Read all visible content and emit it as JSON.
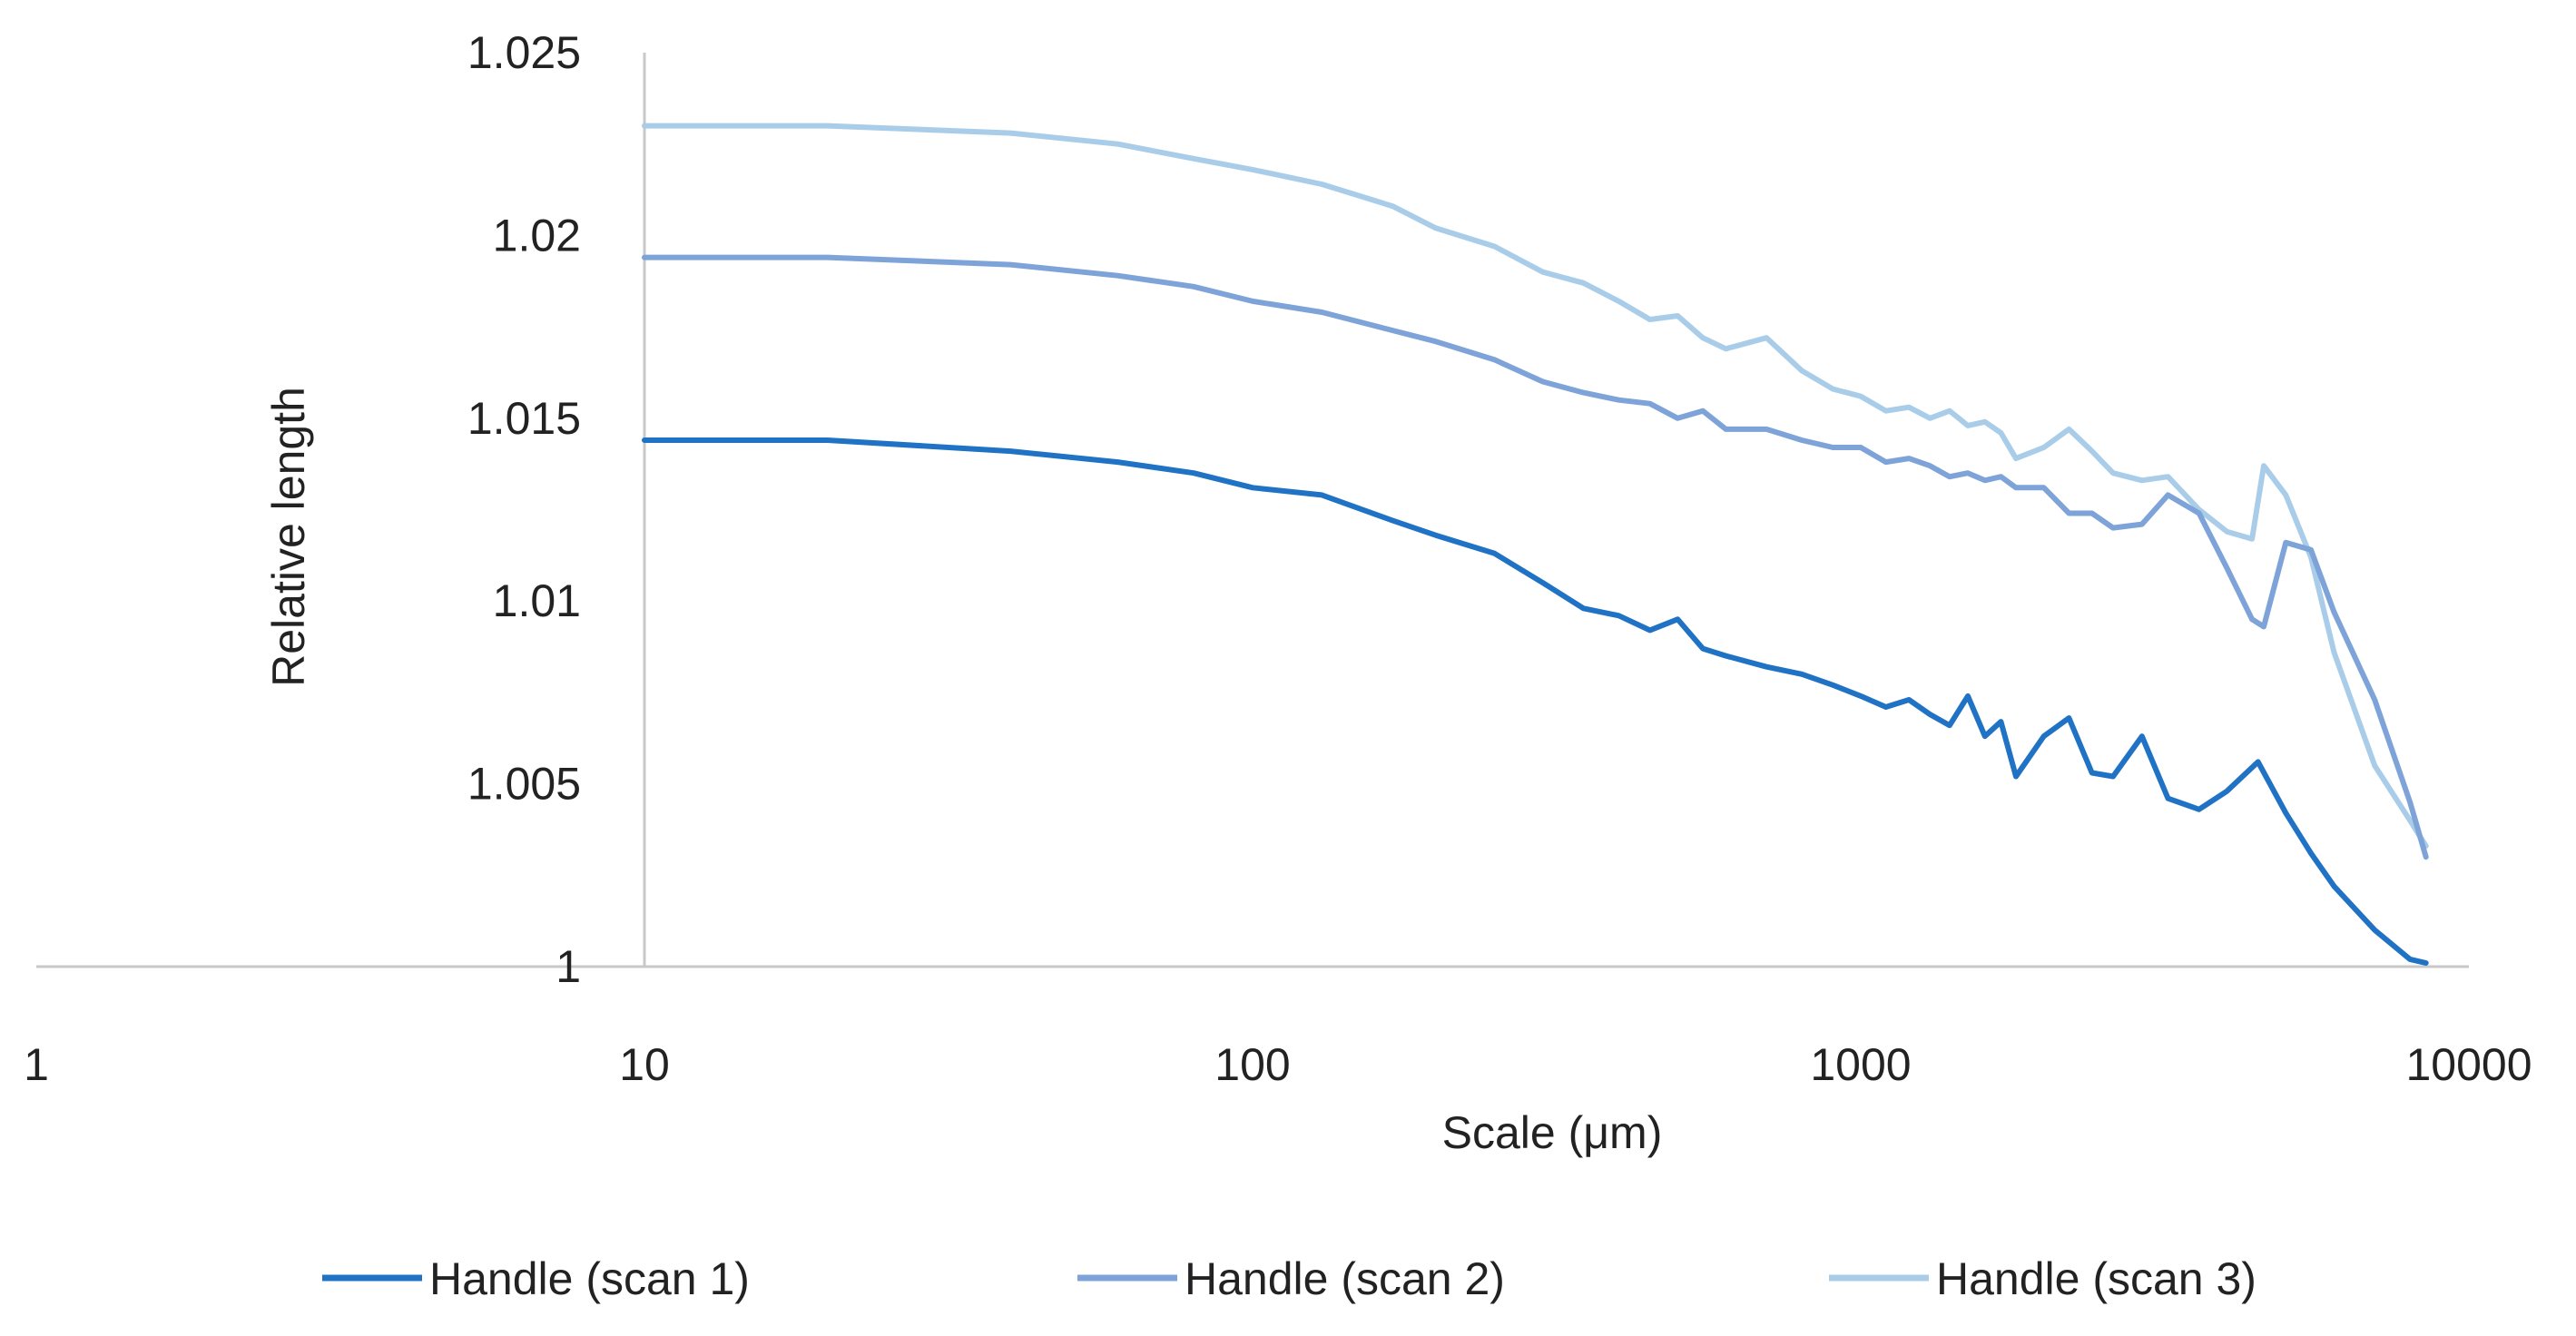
{
  "chart_data": {
    "type": "line",
    "xlabel": "Scale (μm)",
    "ylabel": "Relative length",
    "x_scale": "log",
    "xlim": [
      1,
      10000
    ],
    "ylim": [
      1,
      1.025
    ],
    "x_ticks": [
      1,
      10,
      100,
      1000,
      10000
    ],
    "x_tick_labels": [
      "1",
      "10",
      "100",
      "1000",
      "10000"
    ],
    "y_ticks": [
      1,
      1.005,
      1.01,
      1.015,
      1.02,
      1.025
    ],
    "y_tick_labels": [
      "1",
      "1.005",
      "1.01",
      "1.015",
      "1.02",
      "1.025"
    ],
    "grid": false,
    "legend_position": "bottom",
    "series": [
      {
        "name": "Handle (scan 1)",
        "color": "#1f72c4",
        "x": [
          10,
          20,
          40,
          60,
          80,
          100,
          130,
          170,
          200,
          250,
          300,
          350,
          400,
          450,
          500,
          550,
          600,
          700,
          800,
          900,
          1000,
          1100,
          1200,
          1300,
          1400,
          1500,
          1600,
          1700,
          1800,
          2000,
          2200,
          2400,
          2600,
          2900,
          3200,
          3600,
          4000,
          4500,
          5000,
          5500,
          6000,
          7000,
          8000,
          8500
        ],
        "y": [
          1.0144,
          1.0144,
          1.0141,
          1.0138,
          1.0135,
          1.0131,
          1.0129,
          1.0122,
          1.0118,
          1.0113,
          1.0105,
          1.0098,
          1.0096,
          1.0092,
          1.0095,
          1.0087,
          1.0085,
          1.0082,
          1.008,
          1.0077,
          1.0074,
          1.0071,
          1.0073,
          1.0069,
          1.0066,
          1.0074,
          1.0063,
          1.0067,
          1.0052,
          1.0063,
          1.0068,
          1.0053,
          1.0052,
          1.0063,
          1.0046,
          1.0043,
          1.0048,
          1.0056,
          1.0042,
          1.0031,
          1.0022,
          1.001,
          1.0002,
          1.0001
        ]
      },
      {
        "name": "Handle (scan 2)",
        "color": "#7ea3d8",
        "x": [
          10,
          20,
          40,
          60,
          80,
          100,
          130,
          170,
          200,
          250,
          300,
          350,
          400,
          450,
          500,
          550,
          600,
          700,
          800,
          900,
          1000,
          1100,
          1200,
          1300,
          1400,
          1500,
          1600,
          1700,
          1800,
          2000,
          2200,
          2400,
          2600,
          2900,
          3200,
          3600,
          4000,
          4400,
          4600,
          5000,
          5500,
          6000,
          7000,
          8000,
          8500
        ],
        "y": [
          1.0194,
          1.0194,
          1.0192,
          1.0189,
          1.0186,
          1.0182,
          1.0179,
          1.0174,
          1.0171,
          1.0166,
          1.016,
          1.0157,
          1.0155,
          1.0154,
          1.015,
          1.0152,
          1.0147,
          1.0147,
          1.0144,
          1.0142,
          1.0142,
          1.0138,
          1.0139,
          1.0137,
          1.0134,
          1.0135,
          1.0133,
          1.0134,
          1.0131,
          1.0131,
          1.0124,
          1.0124,
          1.012,
          1.0121,
          1.0129,
          1.0124,
          1.0109,
          1.0095,
          1.0093,
          1.0116,
          1.0114,
          1.0097,
          1.0073,
          1.0045,
          1.003
        ]
      },
      {
        "name": "Handle (scan 3)",
        "color": "#a9cde9",
        "x": [
          10,
          20,
          40,
          60,
          80,
          100,
          130,
          170,
          200,
          250,
          300,
          350,
          400,
          450,
          500,
          550,
          600,
          700,
          800,
          900,
          1000,
          1100,
          1200,
          1300,
          1400,
          1500,
          1600,
          1700,
          1800,
          2000,
          2200,
          2400,
          2600,
          2900,
          3200,
          3600,
          4000,
          4400,
          4600,
          5000,
          5500,
          6000,
          7000,
          8000,
          8500
        ],
        "y": [
          1.023,
          1.023,
          1.0228,
          1.0225,
          1.0221,
          1.0218,
          1.0214,
          1.0208,
          1.0202,
          1.0197,
          1.019,
          1.0187,
          1.0182,
          1.0177,
          1.0178,
          1.0172,
          1.0169,
          1.0172,
          1.0163,
          1.0158,
          1.0156,
          1.0152,
          1.0153,
          1.015,
          1.0152,
          1.0148,
          1.0149,
          1.0146,
          1.0139,
          1.0142,
          1.0147,
          1.0141,
          1.0135,
          1.0133,
          1.0134,
          1.0125,
          1.0119,
          1.0117,
          1.0137,
          1.0129,
          1.0112,
          1.0086,
          1.0055,
          1.004,
          1.0033
        ]
      }
    ]
  }
}
